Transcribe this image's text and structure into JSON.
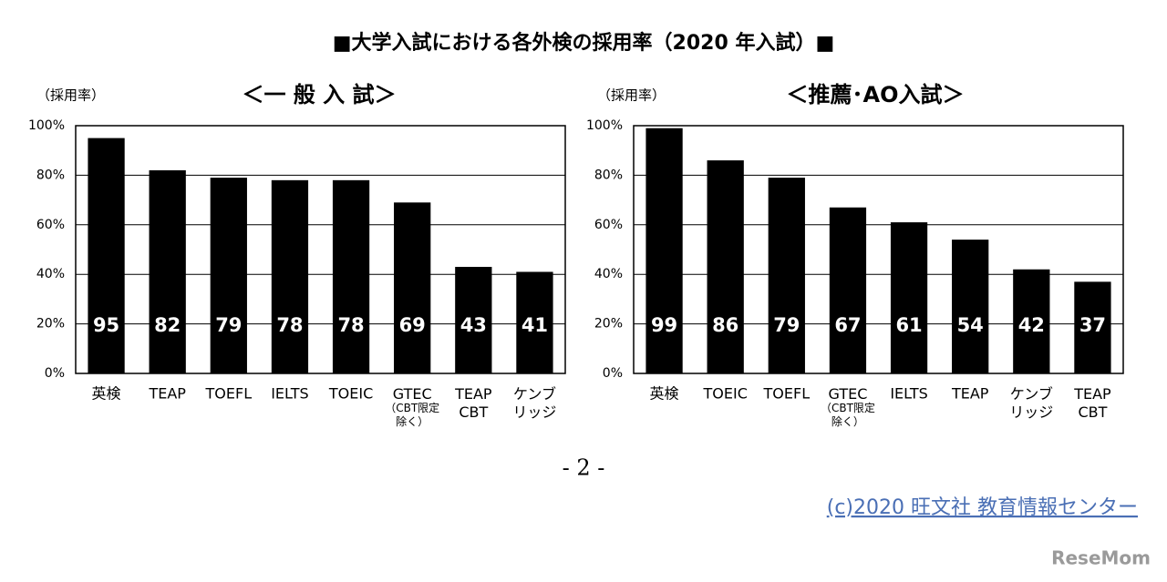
{
  "title": "■大学入試における各外検の採用率（2020 年入試）■",
  "page_number": "- 2 -",
  "credit": "(c)2020 旺文社 教育情報センター",
  "watermark": "ReseMom",
  "chart_data": [
    {
      "type": "bar",
      "title": "＜一 般 入 試＞",
      "y_label": "（採用率）",
      "categories": [
        "英検",
        "TEAP",
        "TOEFL",
        "IELTS",
        "TOEIC",
        "GTEC\n（CBT限定\n除く）",
        "TEAP\nCBT",
        "ケンブ\nリッジ"
      ],
      "values": [
        95,
        82,
        79,
        78,
        78,
        69,
        43,
        41
      ],
      "color": "#000000",
      "ylim": [
        0,
        100
      ],
      "yticks": [
        {
          "value": 0,
          "label": "0%"
        },
        {
          "value": 20,
          "label": "20%"
        },
        {
          "value": 40,
          "label": "40%"
        },
        {
          "value": 60,
          "label": "60%"
        },
        {
          "value": 80,
          "label": "80%"
        },
        {
          "value": 100,
          "label": "100%"
        }
      ],
      "grid": true
    },
    {
      "type": "bar",
      "title": "＜推薦･AO入試＞",
      "y_label": "（採用率）",
      "categories": [
        "英検",
        "TOEIC",
        "TOEFL",
        "GTEC\n（CBT限定\n除く）",
        "IELTS",
        "TEAP",
        "ケンブ\nリッジ",
        "TEAP\nCBT"
      ],
      "values": [
        99,
        86,
        79,
        67,
        61,
        54,
        42,
        37
      ],
      "color": "#000000",
      "ylim": [
        0,
        100
      ],
      "yticks": [
        {
          "value": 0,
          "label": "0%"
        },
        {
          "value": 20,
          "label": "20%"
        },
        {
          "value": 40,
          "label": "40%"
        },
        {
          "value": 60,
          "label": "60%"
        },
        {
          "value": 80,
          "label": "80%"
        },
        {
          "value": 100,
          "label": "100%"
        }
      ],
      "grid": true
    }
  ]
}
